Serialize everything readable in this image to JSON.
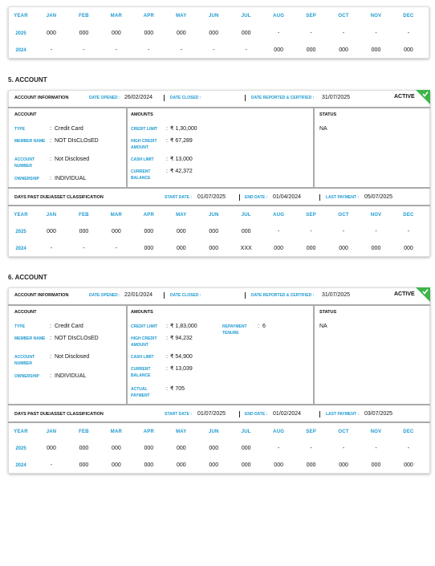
{
  "colon": ":",
  "previous_history": {
    "header": [
      "YEAR",
      "JAN",
      "FEB",
      "MAR",
      "APR",
      "MAY",
      "JUN",
      "JUL",
      "AUG",
      "SEP",
      "OCT",
      "NOV",
      "DEC"
    ],
    "rows": [
      [
        "2025",
        "000",
        "000",
        "000",
        "000",
        "000",
        "000",
        "000",
        "-",
        "-",
        "-",
        "-",
        "-"
      ],
      [
        "2024",
        "-",
        "-",
        "-",
        "-",
        "-",
        "-",
        "-",
        "000",
        "000",
        "000",
        "000",
        "000"
      ]
    ]
  },
  "accounts": [
    {
      "heading": "5. ACCOUNT",
      "info": {
        "title": "ACCOUNT INFORMATION",
        "opened_label": "DATE OPENED :",
        "opened": "26/02/2024",
        "closed_label": "DATE CLOSED :",
        "reported_label": "DATE REPORTED & CERTIFIED :",
        "reported": "31/07/2025",
        "badge": "ACTIVE"
      },
      "account": {
        "title": "ACCOUNT",
        "fields": [
          {
            "label": "TYPE",
            "value": "Credit Card"
          },
          {
            "label": "MEMBER NAME",
            "value": "NOT DIsCLOsED"
          },
          {
            "label": "ACCOUNT NUMBER",
            "value": "Not Disclosed"
          },
          {
            "label": "OWNERSHIP",
            "value": "INDIVIDUAL"
          }
        ]
      },
      "amounts": {
        "title": "AMOUNTS",
        "fields": [
          {
            "label": "CREDIT LIMIT",
            "value": "₹ 1,30,000"
          },
          {
            "label": "HIGH CREDIT AMOUNT",
            "value": "₹ 67,289"
          },
          {
            "label": "CASH LIMIT",
            "value": "₹ 13,000"
          },
          {
            "label": "CURRENT BALANCE",
            "value": "₹ 42,372"
          }
        ],
        "side_fields": []
      },
      "status": {
        "title": "STATUS",
        "value": "NA"
      },
      "dpd": {
        "title": "DAYS PAST DUE/ASSET CLASSIFICATION",
        "start_label": "START DATE :",
        "start": "01/07/2025",
        "end_label": "END DATE :",
        "end": "01/04/2024",
        "last_payment_label": "LAST PAYMENT :",
        "last_payment": "05/07/2025"
      },
      "history": {
        "header": [
          "YEAR",
          "JAN",
          "FEB",
          "MAR",
          "APR",
          "MAY",
          "JUN",
          "JUL",
          "AUG",
          "SEP",
          "OCT",
          "NOV",
          "DEC"
        ],
        "rows": [
          [
            "2025",
            "000",
            "000",
            "000",
            "000",
            "000",
            "000",
            "000",
            "-",
            "-",
            "-",
            "-",
            "-"
          ],
          [
            "2024",
            "-",
            "-",
            "-",
            "000",
            "000",
            "000",
            "XXX",
            "000",
            "000",
            "000",
            "000",
            "000"
          ]
        ]
      }
    },
    {
      "heading": "6. ACCOUNT",
      "info": {
        "title": "ACCOUNT INFORMATION",
        "opened_label": "DATE OPENED :",
        "opened": "22/01/2024",
        "closed_label": "DATE CLOSED :",
        "reported_label": "DATE REPORTED & CERTIFIED :",
        "reported": "31/07/2025",
        "badge": "ACTIVE"
      },
      "account": {
        "title": "ACCOUNT",
        "fields": [
          {
            "label": "TYPE",
            "value": "Credit Card"
          },
          {
            "label": "MEMBER NAME",
            "value": "NOT DIsCLOsED"
          },
          {
            "label": "ACCOUNT NUMBER",
            "value": "Not Disclosed"
          },
          {
            "label": "OWNERSHIP",
            "value": "INDIVIDUAL"
          }
        ]
      },
      "amounts": {
        "title": "AMOUNTS",
        "fields": [
          {
            "label": "CREDIT LIMIT",
            "value": "₹ 1,83,000"
          },
          {
            "label": "HIGH CREDIT AMOUNT",
            "value": "₹ 94,232"
          },
          {
            "label": "CASH LIMIT",
            "value": "₹ 54,900"
          },
          {
            "label": "CURRENT BALANCE",
            "value": "₹ 13,039"
          },
          {
            "label": "ACTUAL PAYMENT",
            "value": "₹ 705"
          }
        ],
        "side_fields": [
          {
            "label": "REPAYMENT TENURE",
            "value": "6"
          }
        ]
      },
      "status": {
        "title": "STATUS",
        "value": "NA"
      },
      "dpd": {
        "title": "DAYS PAST DUE/ASSET CLASSIFICATION",
        "start_label": "START DATE :",
        "start": "01/07/2025",
        "end_label": "END DATE :",
        "end": "01/02/2024",
        "last_payment_label": "LAST PAYMENT :",
        "last_payment": "03/07/2025"
      },
      "history": {
        "header": [
          "YEAR",
          "JAN",
          "FEB",
          "MAR",
          "APR",
          "MAY",
          "JUN",
          "JUL",
          "AUG",
          "SEP",
          "OCT",
          "NOV",
          "DEC"
        ],
        "rows": [
          [
            "2025",
            "000",
            "000",
            "000",
            "000",
            "000",
            "000",
            "000",
            "-",
            "-",
            "-",
            "-",
            "-"
          ],
          [
            "2024",
            "-",
            "000",
            "000",
            "000",
            "000",
            "000",
            "000",
            "000",
            "000",
            "000",
            "000",
            "000"
          ]
        ]
      }
    }
  ]
}
